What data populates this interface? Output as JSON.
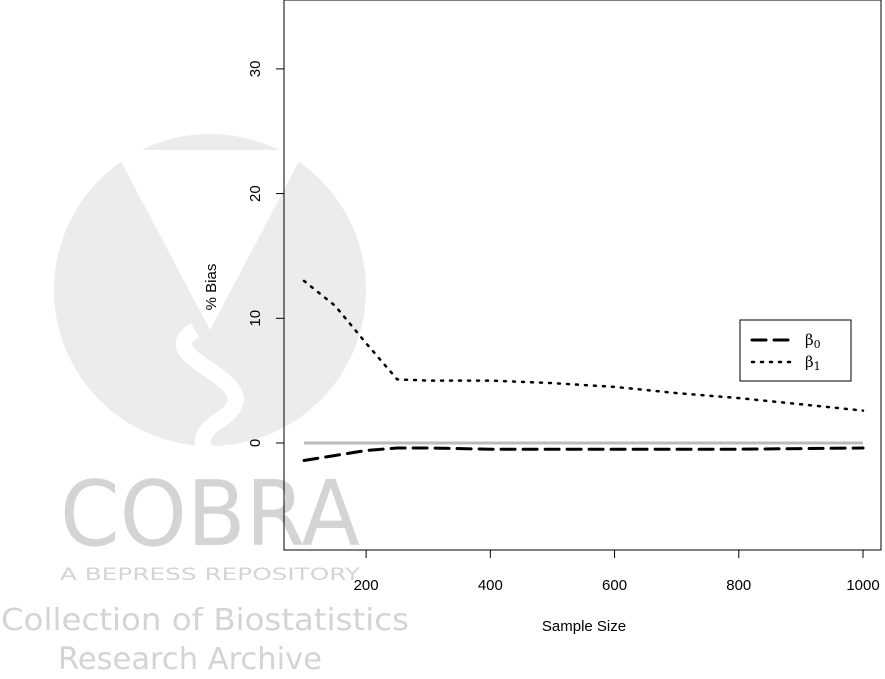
{
  "watermark": {
    "logo_text": "COBRA",
    "tagline": "A BEPRESS REPOSITORY",
    "line1": "Collection of Biostatistics",
    "line2": "Research Archive"
  },
  "chart_data": {
    "type": "line",
    "xlabel": "Sample Size",
    "ylabel": "% Bias",
    "xlim": [
      100,
      1000
    ],
    "ylim": [
      -8.5,
      35
    ],
    "xticks": [
      200,
      400,
      600,
      800,
      1000
    ],
    "yticks": [
      0,
      10,
      20,
      30
    ],
    "grid": false,
    "legend_position": "right",
    "reference_line": {
      "y": 0,
      "color": "#bbbbbb"
    },
    "series": [
      {
        "name": "β0",
        "base": "β",
        "sub": "0",
        "style": "dashed",
        "color": "#000000",
        "x": [
          100,
          150,
          200,
          250,
          300,
          400,
          500,
          600,
          700,
          800,
          900,
          1000
        ],
        "y": [
          -1.4,
          -1.0,
          -0.6,
          -0.4,
          -0.4,
          -0.5,
          -0.5,
          -0.5,
          -0.5,
          -0.5,
          -0.45,
          -0.4
        ]
      },
      {
        "name": "β1",
        "base": "β",
        "sub": "1",
        "style": "dotted",
        "color": "#000000",
        "x": [
          100,
          150,
          200,
          250,
          300,
          400,
          500,
          600,
          700,
          800,
          900,
          1000
        ],
        "y": [
          13.0,
          11.0,
          8.0,
          5.1,
          5.0,
          5.0,
          4.8,
          4.5,
          4.0,
          3.6,
          3.1,
          2.6
        ]
      }
    ]
  }
}
